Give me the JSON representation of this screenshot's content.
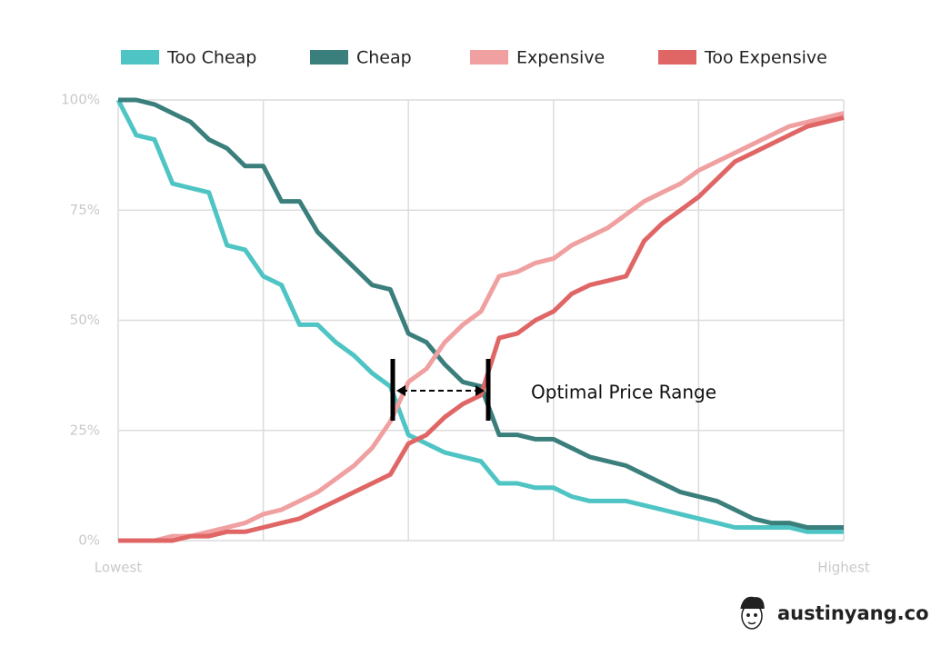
{
  "chart_data": {
    "type": "line",
    "categories": [
      "Lowest",
      null,
      null,
      null,
      null,
      null,
      null,
      null,
      null,
      null,
      null,
      null,
      null,
      null,
      null,
      null,
      null,
      null,
      null,
      null,
      null,
      null,
      null,
      null,
      null,
      null,
      null,
      null,
      null,
      null,
      null,
      null,
      null,
      null,
      null,
      null,
      null,
      null,
      null,
      null,
      "Highest"
    ],
    "series": [
      {
        "name": "Too Cheap",
        "color": "#4fc4c4",
        "values": [
          100,
          92,
          91,
          81,
          80,
          79,
          67,
          66,
          60,
          58,
          49,
          49,
          45,
          42,
          38,
          35,
          24,
          22,
          20,
          19,
          18,
          13,
          13,
          12,
          12,
          10,
          9,
          9,
          9,
          8,
          7,
          6,
          5,
          4,
          3,
          3,
          3,
          3,
          2,
          2,
          2
        ]
      },
      {
        "name": "Cheap",
        "color": "#3a7f7c",
        "values": [
          100,
          100,
          99,
          97,
          95,
          91,
          89,
          85,
          85,
          77,
          77,
          70,
          66,
          62,
          58,
          57,
          47,
          45,
          40,
          36,
          35,
          24,
          24,
          23,
          23,
          21,
          19,
          18,
          17,
          15,
          13,
          11,
          10,
          9,
          7,
          5,
          4,
          4,
          3,
          3,
          3
        ]
      },
      {
        "name": "Expensive",
        "color": "#f0a0a0",
        "values": [
          0,
          0,
          0,
          1,
          1,
          2,
          3,
          4,
          6,
          7,
          9,
          11,
          14,
          17,
          21,
          27,
          36,
          39,
          45,
          49,
          52,
          60,
          61,
          63,
          64,
          67,
          69,
          71,
          74,
          77,
          79,
          81,
          84,
          86,
          88,
          90,
          92,
          94,
          95,
          96,
          97
        ]
      },
      {
        "name": "Too Expensive",
        "color": "#e06666",
        "values": [
          0,
          0,
          0,
          0,
          1,
          1,
          2,
          2,
          3,
          4,
          5,
          7,
          9,
          11,
          13,
          15,
          22,
          24,
          28,
          31,
          33,
          46,
          47,
          50,
          52,
          56,
          58,
          59,
          60,
          68,
          72,
          75,
          78,
          82,
          86,
          88,
          90,
          92,
          94,
          95,
          96
        ]
      }
    ],
    "ylim": [
      0,
      100
    ],
    "yticks": [
      {
        "value": 0,
        "label": "0%"
      },
      {
        "value": 25,
        "label": "25%"
      },
      {
        "value": 50,
        "label": "50%"
      },
      {
        "value": 75,
        "label": "75%"
      },
      {
        "value": 100,
        "label": "100%"
      }
    ],
    "grid": true,
    "legend": "top",
    "annotation": "Optimal Price Range",
    "credit": "austinyang.co"
  }
}
